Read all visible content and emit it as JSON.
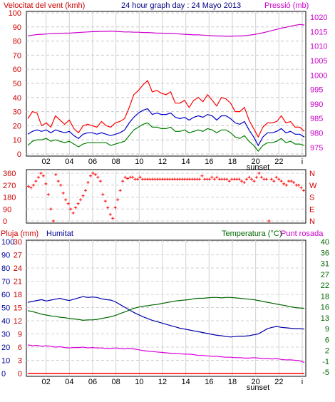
{
  "header": {
    "left_label": "Velocitat del vent (kmh)",
    "title": "24 hour graph day : 24 Mayo 2013",
    "right_label": "Pressió (mb)"
  },
  "lower_header": {
    "rain_label": "Pluja (mm)",
    "humidity_label": "Humitat",
    "temperature_label": "Temperatura (°C)",
    "dewpoint_label": "Punt rosada"
  },
  "colors": {
    "wind_gust": "#ff0000",
    "wind_avg": "#0000cc",
    "wind_low": "#008000",
    "pressure": "#cc00cc",
    "direction": "#ff0000",
    "humidity": "#0000aa",
    "temperature": "#006600",
    "dewpoint": "#dd00dd",
    "rain": "#ff0000",
    "axis_text_red": "#cc0000",
    "axis_text_magenta": "#cc00cc",
    "axis_text_blue": "#000099",
    "axis_text_green": "#006600"
  },
  "chart_data": [
    {
      "type": "line",
      "x_ticks": [
        "02",
        "04",
        "06",
        "08",
        "10",
        "12",
        "14",
        "16",
        "18",
        "20",
        "22",
        "i"
      ],
      "sunset_label": "sunset",
      "y_left": {
        "ticks": [
          0,
          10,
          20,
          30,
          40,
          50,
          60,
          70,
          80,
          90,
          100
        ],
        "ylim": [
          0,
          100
        ]
      },
      "y_right": {
        "ticks": [
          975,
          980,
          985,
          990,
          995,
          1000,
          1005,
          1010,
          1015,
          1020
        ],
        "ylim": [
          972,
          1022
        ]
      },
      "series": [
        {
          "axis": "left",
          "color": "wind_gust",
          "values": [
            25,
            30,
            29,
            20,
            22,
            19,
            27,
            24,
            21,
            24,
            18,
            15,
            20,
            21,
            20,
            19,
            23,
            20,
            19,
            22,
            23,
            25,
            33,
            42,
            45,
            49,
            52,
            44,
            45,
            43,
            42,
            44,
            36,
            36,
            38,
            33,
            38,
            40,
            37,
            42,
            38,
            34,
            40,
            39,
            36,
            30,
            30,
            33,
            24,
            18,
            12,
            19,
            22,
            22,
            23,
            27,
            22,
            23,
            19,
            19,
            16
          ]
        },
        {
          "axis": "left",
          "color": "wind_avg",
          "values": [
            14,
            16,
            17,
            16,
            17,
            15,
            17,
            16,
            15,
            16,
            13,
            11,
            14,
            15,
            15,
            14,
            15,
            14,
            13,
            14,
            15,
            17,
            22,
            26,
            29,
            31,
            32,
            28,
            29,
            28,
            28,
            29,
            26,
            25,
            26,
            24,
            26,
            27,
            26,
            28,
            27,
            24,
            27,
            27,
            25,
            22,
            21,
            23,
            17,
            12,
            6,
            12,
            15,
            15,
            16,
            18,
            15,
            16,
            14,
            14,
            12
          ]
        },
        {
          "axis": "left",
          "color": "wind_low",
          "values": [
            6,
            9,
            10,
            10,
            11,
            9,
            10,
            9,
            8,
            9,
            7,
            5,
            7,
            8,
            8,
            8,
            8,
            8,
            6,
            7,
            8,
            9,
            13,
            17,
            19,
            21,
            22,
            19,
            19,
            18,
            18,
            19,
            16,
            16,
            17,
            15,
            16,
            17,
            16,
            18,
            17,
            15,
            17,
            17,
            15,
            12,
            11,
            13,
            9,
            6,
            2,
            6,
            8,
            8,
            9,
            11,
            8,
            9,
            7,
            7,
            6
          ]
        },
        {
          "axis": "right",
          "color": "pressure",
          "values": [
            1013.5,
            1013.8,
            1014,
            1014.1,
            1014.2,
            1014.3,
            1014.4,
            1014.4,
            1014.5,
            1014.5,
            1014.6,
            1014.7,
            1014.8,
            1014.9,
            1015,
            1015,
            1015.1,
            1015.1,
            1015.2,
            1015.1,
            1015,
            1014.9,
            1014.9,
            1014.8,
            1014.8,
            1014.7,
            1014.7,
            1014.6,
            1014.5,
            1014.5,
            1014.4,
            1014.4,
            1014.3,
            1014.2,
            1014.1,
            1014,
            1013.9,
            1013.9,
            1013.8,
            1013.7,
            1013.6,
            1013.5,
            1013.5,
            1013.4,
            1013.4,
            1013.5,
            1013.5,
            1013.6,
            1013.8,
            1014,
            1014.3,
            1014.6,
            1015,
            1015.4,
            1015.8,
            1016.2,
            1016.5,
            1016.9,
            1017.2,
            1017.5,
            1017.3
          ]
        }
      ]
    },
    {
      "type": "scatter",
      "y_ticks_left": [
        "360",
        "270",
        "180",
        "90",
        "0"
      ],
      "y_ticks_right": [
        "N",
        "W",
        "S",
        "E",
        "N"
      ],
      "ylim": [
        0,
        360
      ],
      "values": [
        260,
        250,
        270,
        300,
        330,
        360,
        340,
        280,
        200,
        90,
        0,
        350,
        300,
        270,
        210,
        160,
        130,
        90,
        60,
        100,
        130,
        160,
        190,
        230,
        290,
        340,
        360,
        350,
        330,
        300,
        200,
        150,
        100,
        50,
        20,
        100,
        160,
        230,
        300,
        330,
        320,
        330,
        330,
        315,
        315,
        330,
        315,
        315,
        315,
        315,
        315,
        315,
        315,
        315,
        315,
        315,
        315,
        315,
        315,
        315,
        315,
        315,
        315,
        315,
        315,
        315,
        315,
        315,
        315,
        315,
        340,
        315,
        315,
        315,
        330,
        315,
        330,
        315,
        315,
        315,
        315,
        300,
        315,
        315,
        315,
        315,
        300,
        290,
        315,
        330,
        315,
        300,
        330,
        360,
        330,
        315,
        315,
        0,
        315,
        300,
        330,
        315,
        300,
        280,
        270,
        300,
        300,
        290,
        270,
        270,
        250,
        230
      ]
    },
    {
      "type": "line",
      "x_ticks": [
        "02",
        "04",
        "06",
        "08",
        "10",
        "12",
        "14",
        "16",
        "18",
        "20",
        "22",
        "i"
      ],
      "sunset_label": "sunset",
      "y_rain": {
        "ticks": [
          0,
          10,
          20,
          30,
          40,
          50,
          60,
          70,
          80,
          90,
          100
        ],
        "ylim": [
          0,
          100
        ]
      },
      "y_humidity": {
        "ticks": [
          0,
          3,
          6,
          9,
          12,
          15,
          18,
          21,
          24,
          27,
          30
        ],
        "ylim": [
          0,
          30
        ]
      },
      "y_temp": {
        "ticks": [
          -5,
          -1,
          2,
          6,
          9,
          13,
          16,
          18,
          22,
          27,
          31,
          36,
          40
        ],
        "ylim": [
          -5,
          40
        ]
      },
      "series": [
        {
          "axis": "humidity",
          "color": "humidity",
          "values": [
            16.2,
            16.4,
            16.6,
            16.8,
            16.5,
            16.7,
            16.9,
            17.1,
            16.8,
            16.6,
            16.9,
            17.2,
            17.5,
            17.3,
            17.4,
            17.3,
            17,
            16.8,
            16.7,
            16.3,
            15.7,
            15.1,
            14.5,
            13.9,
            13.4,
            12.9,
            12.5,
            12.1,
            11.8,
            11.5,
            11.2,
            10.9,
            10.6,
            10.3,
            10.1,
            9.9,
            9.7,
            9.5,
            9.3,
            9.1,
            8.9,
            8.7,
            8.6,
            8.4,
            8.3,
            8.4,
            8.5,
            8.5,
            8.6,
            8.8,
            9,
            9.6,
            10.2,
            10.5,
            10.7,
            10.5,
            10.4,
            10.3,
            10.2,
            10.2,
            10.1
          ]
        },
        {
          "axis": "humidity",
          "color": "temperature",
          "values": [
            14.3,
            14.1,
            13.8,
            13.5,
            13.3,
            13.1,
            13,
            12.8,
            12.7,
            12.5,
            12.4,
            12.3,
            12.1,
            12.2,
            12.2,
            12.3,
            12.5,
            12.7,
            12.9,
            13.2,
            13.6,
            14,
            14.4,
            14.8,
            15.1,
            15.3,
            15.4,
            15.6,
            15.7,
            15.9,
            16.1,
            16.3,
            16.5,
            16.6,
            16.7,
            16.8,
            17,
            17.1,
            17.1,
            17.2,
            17.3,
            17.3,
            17.2,
            17.3,
            17.3,
            17.2,
            17.1,
            17,
            16.9,
            16.8,
            16.6,
            16.4,
            16.2,
            16,
            15.8,
            15.6,
            15.4,
            15.2,
            15,
            14.9,
            14.8
          ]
        },
        {
          "axis": "humidity",
          "color": "dewpoint",
          "values": [
            6.5,
            6.3,
            6.4,
            6.2,
            6.3,
            6.2,
            6,
            6.1,
            5.9,
            5.8,
            5.9,
            5.9,
            6,
            5.8,
            5.9,
            5.8,
            5.8,
            5.7,
            5.7,
            5.8,
            5.7,
            5.6,
            5.7,
            5.6,
            5.4,
            5.2,
            5.1,
            5,
            4.9,
            4.8,
            4.7,
            4.6,
            4.6,
            4.5,
            4.4,
            4.4,
            4.3,
            4.1,
            4.1,
            4,
            3.9,
            3.9,
            3.8,
            3.7,
            3.7,
            3.6,
            3.6,
            3.5,
            3.5,
            3.6,
            3.5,
            3.4,
            3.4,
            3.3,
            3.4,
            3.2,
            3.1,
            3.1,
            3,
            2.9,
            2.5
          ]
        },
        {
          "axis": "rain",
          "color": "rain",
          "values": [
            0,
            0,
            0,
            0,
            0,
            0,
            0,
            0,
            0,
            0,
            0,
            0,
            0,
            0,
            0,
            0,
            0,
            0,
            0,
            0,
            0,
            0,
            0,
            0,
            0,
            0,
            0,
            0,
            0,
            0,
            0,
            0,
            0,
            0,
            0,
            0,
            0,
            0,
            0,
            0,
            0,
            0,
            0,
            0,
            0,
            0,
            0,
            0,
            0,
            0,
            0,
            0,
            0,
            0,
            0,
            0,
            0,
            0,
            0,
            0,
            0
          ]
        }
      ]
    }
  ]
}
